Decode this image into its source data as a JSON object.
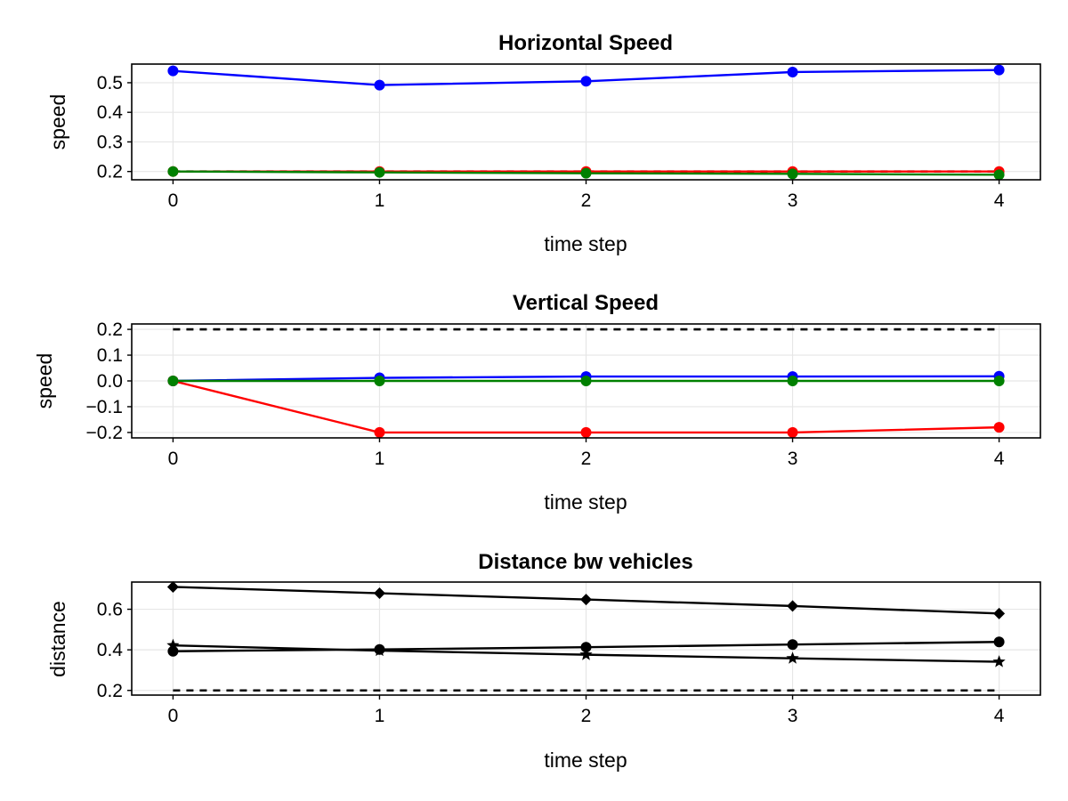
{
  "chart_data": [
    {
      "type": "line",
      "title": "Horizontal Speed",
      "xlabel": "time step",
      "ylabel": "speed",
      "x": [
        0,
        1,
        2,
        3,
        4
      ],
      "xlim": [
        -0.2,
        4.2
      ],
      "ylim": [
        0.172,
        0.563
      ],
      "xticks": [
        0,
        1,
        2,
        3,
        4
      ],
      "yticks": [
        0.2,
        0.3,
        0.4,
        0.5
      ],
      "ytick_labels": [
        "0.2",
        "0.3",
        "0.4",
        "0.5"
      ],
      "grid": true,
      "series": [
        {
          "color": "#0000ff",
          "marker": "circle",
          "values": [
            0.54,
            0.492,
            0.505,
            0.536,
            0.543
          ]
        },
        {
          "color": "#ff0000",
          "marker": "circle",
          "values": [
            0.2,
            0.2,
            0.2,
            0.2,
            0.2
          ]
        },
        {
          "color": "#008000",
          "marker": "circle",
          "values": [
            0.2,
            0.197,
            0.194,
            0.192,
            0.189
          ]
        }
      ],
      "reference_lines": [
        {
          "y": 0.2,
          "color": "#000000",
          "style": "dashed"
        }
      ]
    },
    {
      "type": "line",
      "title": "Vertical Speed",
      "xlabel": "time step",
      "ylabel": "speed",
      "x": [
        0,
        1,
        2,
        3,
        4
      ],
      "xlim": [
        -0.2,
        4.2
      ],
      "ylim": [
        -0.221,
        0.221
      ],
      "xticks": [
        0,
        1,
        2,
        3,
        4
      ],
      "yticks": [
        -0.2,
        -0.1,
        0.0,
        0.1,
        0.2
      ],
      "ytick_labels": [
        "−0.2",
        "−0.1",
        "0.0",
        "0.1",
        "0.2"
      ],
      "grid": true,
      "series": [
        {
          "color": "#0000ff",
          "marker": "circle",
          "values": [
            0.0,
            0.012,
            0.017,
            0.017,
            0.018
          ]
        },
        {
          "color": "#ff0000",
          "marker": "circle",
          "values": [
            0.0,
            -0.2,
            -0.2,
            -0.2,
            -0.18
          ]
        },
        {
          "color": "#008000",
          "marker": "circle",
          "values": [
            0.0,
            0.0,
            0.0,
            0.0,
            0.0
          ]
        }
      ],
      "reference_lines": [
        {
          "y": 0.2,
          "color": "#000000",
          "style": "dashed"
        }
      ]
    },
    {
      "type": "line",
      "title": "Distance bw vehicles",
      "xlabel": "time step",
      "ylabel": "distance",
      "x": [
        0,
        1,
        2,
        3,
        4
      ],
      "xlim": [
        -0.2,
        4.2
      ],
      "ylim": [
        0.177,
        0.734
      ],
      "xticks": [
        0,
        1,
        2,
        3,
        4
      ],
      "yticks": [
        0.2,
        0.4,
        0.6
      ],
      "ytick_labels": [
        "0.2",
        "0.4",
        "0.6"
      ],
      "grid": true,
      "series": [
        {
          "color": "#000000",
          "marker": "diamond",
          "values": [
            0.71,
            0.679,
            0.648,
            0.616,
            0.579
          ]
        },
        {
          "color": "#000000",
          "marker": "circle",
          "values": [
            0.393,
            0.402,
            0.413,
            0.426,
            0.439
          ]
        },
        {
          "color": "#000000",
          "marker": "star",
          "values": [
            0.422,
            0.396,
            0.376,
            0.358,
            0.341
          ]
        }
      ],
      "reference_lines": [
        {
          "y": 0.2,
          "color": "#000000",
          "style": "dashed"
        }
      ]
    }
  ]
}
